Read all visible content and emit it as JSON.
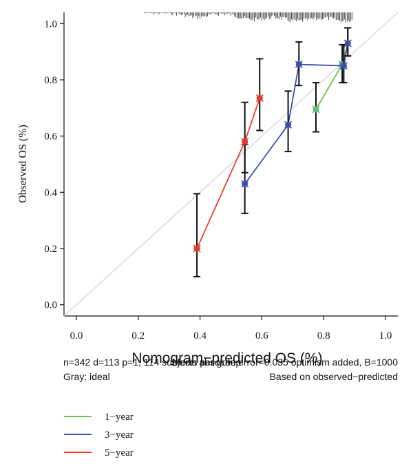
{
  "chart_data": {
    "type": "line",
    "xlabel": "Nomogram−predicted OS (%)",
    "ylabel": "Observed OS (%)",
    "xlim": [
      -0.04,
      1.04
    ],
    "ylim": [
      -0.04,
      1.04
    ],
    "xticks": [
      "0.0",
      "0.2",
      "0.4",
      "0.6",
      "0.8",
      "1.0"
    ],
    "yticks": [
      "0.0",
      "0.2",
      "0.4",
      "0.6",
      "0.8",
      "1.0"
    ],
    "ideal_line": {
      "label": "Gray: ideal",
      "color": "#d9d9d9"
    },
    "notes": {
      "line1_left": "n=342 d=113 p=1, 114 subjects per group",
      "line1_right": "Mean absolute error=0.035 optimism added, B=1000",
      "line2_left": "Gray: ideal",
      "line2_right": "Based on observed−predicted"
    },
    "rug_top": true,
    "series": [
      {
        "name": "1−year",
        "color": "#6cc24a",
        "marker_color": "#5bb8b0",
        "points": [
          {
            "x": 0.775,
            "y": 0.695,
            "lo": 0.615,
            "hi": 0.79
          },
          {
            "x": 0.86,
            "y": 0.855,
            "lo": 0.79,
            "hi": 0.925
          },
          {
            "x": 0.878,
            "y": 0.93,
            "lo": 0.885,
            "hi": 0.985
          }
        ]
      },
      {
        "name": "3−year",
        "color": "#3f4fa8",
        "marker_color": "#3f4fa8",
        "points": [
          {
            "x": 0.545,
            "y": 0.43,
            "lo": 0.325,
            "hi": 0.57
          },
          {
            "x": 0.685,
            "y": 0.64,
            "lo": 0.545,
            "hi": 0.76
          },
          {
            "x": 0.72,
            "y": 0.855,
            "lo": 0.78,
            "hi": 0.935
          },
          {
            "x": 0.865,
            "y": 0.85,
            "lo": 0.79,
            "hi": 0.925
          },
          {
            "x": 0.878,
            "y": 0.93,
            "lo": 0.885,
            "hi": 0.985
          }
        ]
      },
      {
        "name": "5−year",
        "color": "#e8402a",
        "marker_color": "#d23a3a",
        "points": [
          {
            "x": 0.39,
            "y": 0.2,
            "lo": 0.1,
            "hi": 0.395
          },
          {
            "x": 0.545,
            "y": 0.58,
            "lo": 0.47,
            "hi": 0.72
          },
          {
            "x": 0.593,
            "y": 0.735,
            "lo": 0.62,
            "hi": 0.875
          }
        ]
      }
    ],
    "legend_position": "bottom-left"
  }
}
